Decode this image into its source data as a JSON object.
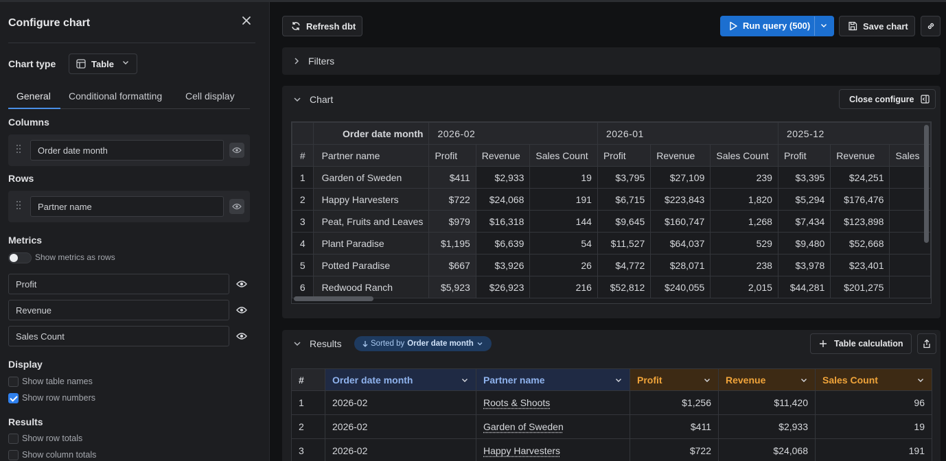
{
  "left_panel": {
    "title": "Configure chart",
    "chart_type_label": "Chart type",
    "chart_type_value": "Table",
    "tabs": [
      "General",
      "Conditional formatting",
      "Cell display"
    ],
    "columns_label": "Columns",
    "columns_field": "Order date month",
    "rows_label": "Rows",
    "rows_field": "Partner name",
    "metrics_label": "Metrics",
    "show_metrics_as_rows": "Show metrics as rows",
    "metrics": [
      "Profit",
      "Revenue",
      "Sales Count"
    ],
    "display_label": "Display",
    "show_table_names": "Show table names",
    "show_row_numbers": "Show row numbers",
    "results_label": "Results",
    "show_row_totals": "Show row totals",
    "show_column_totals": "Show column totals"
  },
  "toolbar": {
    "refresh": "Refresh dbt",
    "run_query": "Run query (500)",
    "save_chart": "Save chart"
  },
  "filters": {
    "title": "Filters"
  },
  "chart": {
    "title": "Chart",
    "close_configure": "Close configure",
    "pivot_dim_header": "Order date month",
    "row_dim_header": "Partner name",
    "index_header": "#",
    "months": [
      "2026-02",
      "2026-01",
      "2025-12"
    ],
    "metric_headers": [
      "Profit",
      "Revenue",
      "Sales Count"
    ],
    "partial_metric_header": "Sales",
    "rows": [
      {
        "n": "1",
        "partner": "Garden of Sweden",
        "v": [
          "$411",
          "$2,933",
          "19",
          "$3,795",
          "$27,109",
          "239",
          "$3,395",
          "$24,251"
        ]
      },
      {
        "n": "2",
        "partner": "Happy Harvesters",
        "v": [
          "$722",
          "$24,068",
          "191",
          "$6,715",
          "$223,843",
          "1,820",
          "$5,294",
          "$176,476"
        ]
      },
      {
        "n": "3",
        "partner": "Peat, Fruits and Leaves",
        "v": [
          "$979",
          "$16,318",
          "144",
          "$9,645",
          "$160,747",
          "1,268",
          "$7,434",
          "$123,898"
        ]
      },
      {
        "n": "4",
        "partner": "Plant Paradise",
        "v": [
          "$1,195",
          "$6,639",
          "54",
          "$11,527",
          "$64,037",
          "529",
          "$9,480",
          "$52,668"
        ]
      },
      {
        "n": "5",
        "partner": "Potted Paradise",
        "v": [
          "$667",
          "$3,926",
          "26",
          "$4,772",
          "$28,071",
          "238",
          "$3,978",
          "$23,401"
        ]
      },
      {
        "n": "6",
        "partner": "Redwood Ranch",
        "v": [
          "$5,923",
          "$26,923",
          "216",
          "$52,812",
          "$240,055",
          "2,015",
          "$44,281",
          "$201,275"
        ]
      }
    ]
  },
  "results": {
    "title": "Results",
    "sorted_prefix": "Sorted by",
    "sorted_field": "Order date month",
    "table_calculation": "Table calculation",
    "headers": [
      "#",
      "Order date month",
      "Partner name",
      "Profit",
      "Revenue",
      "Sales Count"
    ],
    "rows": [
      {
        "n": "1",
        "month": "2026-02",
        "partner": "Roots & Shoots",
        "profit": "$1,256",
        "revenue": "$11,420",
        "count": "96"
      },
      {
        "n": "2",
        "month": "2026-02",
        "partner": "Garden of Sweden",
        "profit": "$411",
        "revenue": "$2,933",
        "count": "19"
      },
      {
        "n": "3",
        "month": "2026-02",
        "partner": "Happy Harvesters",
        "profit": "$722",
        "revenue": "$24,068",
        "count": "191"
      }
    ]
  },
  "colors": {
    "accent": "#1c6fd0",
    "dimension_header": "#8fb3ee",
    "metric_header": "#f0a43a"
  }
}
